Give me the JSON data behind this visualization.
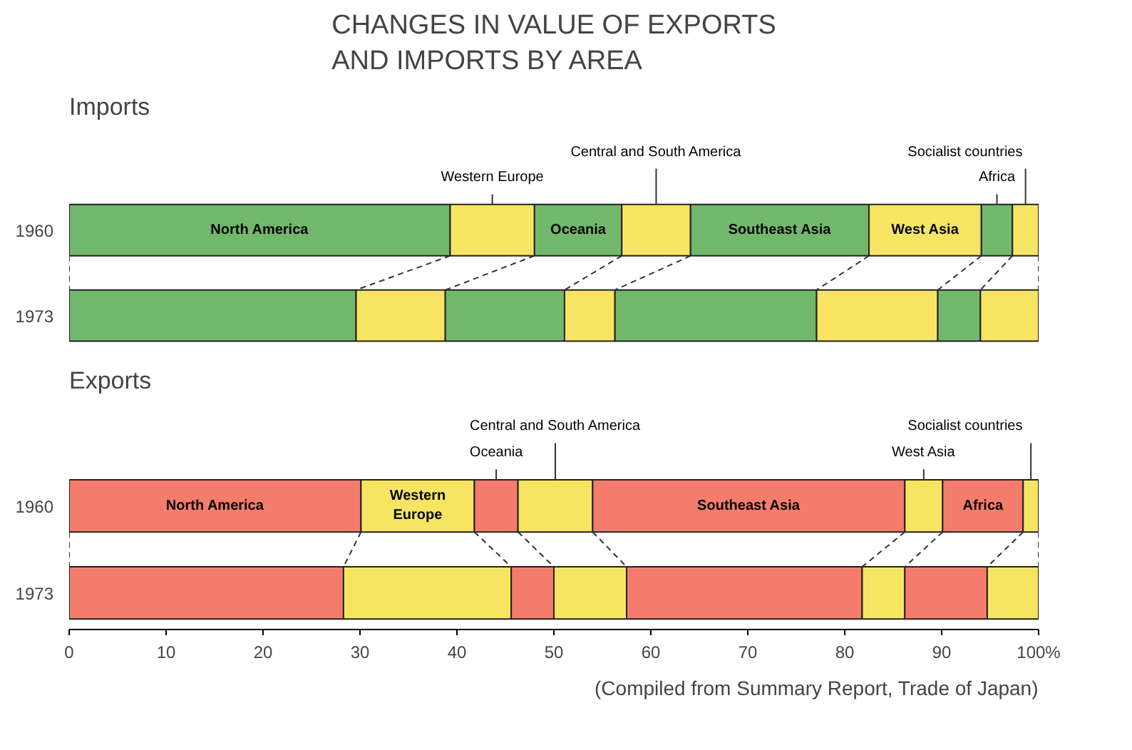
{
  "chart_data": [
    {
      "type": "bar",
      "orientation": "horizontal",
      "stacked": true,
      "title": "CHANGES IN VALUE OF EXPORTS\nAND IMPORTS BY AREA",
      "subtitle": "Imports",
      "categories": [
        "1960",
        "1973"
      ],
      "xlim": [
        0,
        100
      ],
      "tick_labels": "y",
      "grid": false,
      "series": [
        {
          "name": "North America",
          "color": "#72b86c",
          "values": [
            39.3,
            29.6
          ]
        },
        {
          "name": "Western Europe",
          "color": "#f8e463",
          "values": [
            8.7,
            9.2
          ]
        },
        {
          "name": "Oceania",
          "color": "#72b86c",
          "values": [
            9.0,
            12.3
          ]
        },
        {
          "name": "Central and South America",
          "color": "#f8e463",
          "values": [
            7.1,
            5.2
          ]
        },
        {
          "name": "Southeast Asia",
          "color": "#72b86c",
          "values": [
            18.4,
            20.8
          ]
        },
        {
          "name": "West Asia",
          "color": "#f8e463",
          "values": [
            11.6,
            12.5
          ]
        },
        {
          "name": "Africa",
          "color": "#72b86c",
          "values": [
            3.2,
            4.4
          ]
        },
        {
          "name": "Socialist countries",
          "color": "#f8e463",
          "values": [
            2.7,
            6.0
          ]
        }
      ]
    },
    {
      "type": "bar",
      "orientation": "horizontal",
      "stacked": true,
      "title": "Exports",
      "categories": [
        "1960",
        "1973"
      ],
      "xlim": [
        0,
        100
      ],
      "xticks": [
        0,
        10,
        20,
        30,
        40,
        50,
        60,
        70,
        80,
        90,
        {
          "value": 100,
          "label": "100%"
        }
      ],
      "grid": false,
      "annotations": [
        "(Compiled from Summary Report, Trade of Japan)"
      ],
      "series": [
        {
          "name": "North America",
          "color": "#f47c6c",
          "values": [
            30.1,
            28.3
          ]
        },
        {
          "name": "Western Europe",
          "color": "#f8e463",
          "values": [
            11.7,
            17.3
          ]
        },
        {
          "name": "Oceania",
          "color": "#f47c6c",
          "values": [
            4.5,
            4.4
          ]
        },
        {
          "name": "Central and South America",
          "color": "#f8e463",
          "values": [
            7.7,
            7.5
          ]
        },
        {
          "name": "Southeast Asia",
          "color": "#f47c6c",
          "values": [
            32.2,
            24.3
          ]
        },
        {
          "name": "West Asia",
          "color": "#f8e463",
          "values": [
            3.9,
            4.4
          ]
        },
        {
          "name": "Africa",
          "color": "#f47c6c",
          "values": [
            8.3,
            8.5
          ]
        },
        {
          "name": "Socialist countries",
          "color": "#f8e463",
          "values": [
            1.6,
            5.3
          ]
        }
      ]
    }
  ]
}
